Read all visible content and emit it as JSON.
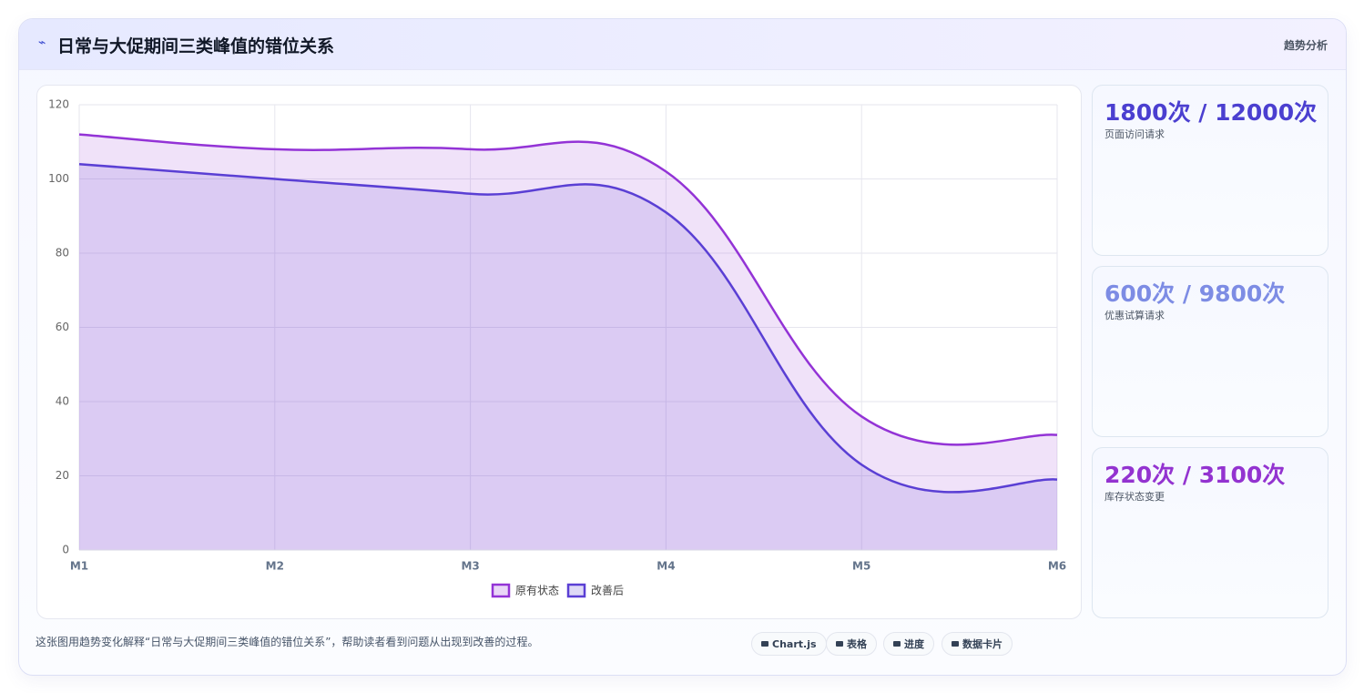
{
  "header": {
    "title": "日常与大促期间三类峰值的错位关系",
    "tag": "趋势分析"
  },
  "chart_data": {
    "type": "line",
    "categories": [
      "M1",
      "M2",
      "M3",
      "M4",
      "M5",
      "M6"
    ],
    "series": [
      {
        "name": "原有状态",
        "color": "#9333d6",
        "values": [
          112,
          108,
          108,
          102,
          36,
          31
        ]
      },
      {
        "name": "改善后",
        "color": "#5a3fd4",
        "values": [
          104,
          100,
          96,
          91,
          23,
          19
        ]
      }
    ],
    "ylim": [
      0,
      120
    ],
    "yticks": [
      0,
      20,
      40,
      60,
      80,
      100,
      120
    ],
    "grid": true,
    "fill": true,
    "smooth": true,
    "legend": "bottom"
  },
  "cards": [
    {
      "value": "1800次 / 12000次",
      "label": "页面访问请求",
      "color": "#4b3fd0"
    },
    {
      "value": "600次 / 9800次",
      "label": "优惠试算请求",
      "color": "#7d8ce4"
    },
    {
      "value": "220次 / 3100次",
      "label": "库存状态变更",
      "color": "#9333d0"
    }
  ],
  "footer": {
    "note": "这张图用趋势变化解释“日常与大促期间三类峰值的错位关系”，帮助读者看到问题从出现到改善的过程。",
    "buttons": [
      "Chart.js",
      "表格",
      "进度",
      "数据卡片"
    ]
  }
}
